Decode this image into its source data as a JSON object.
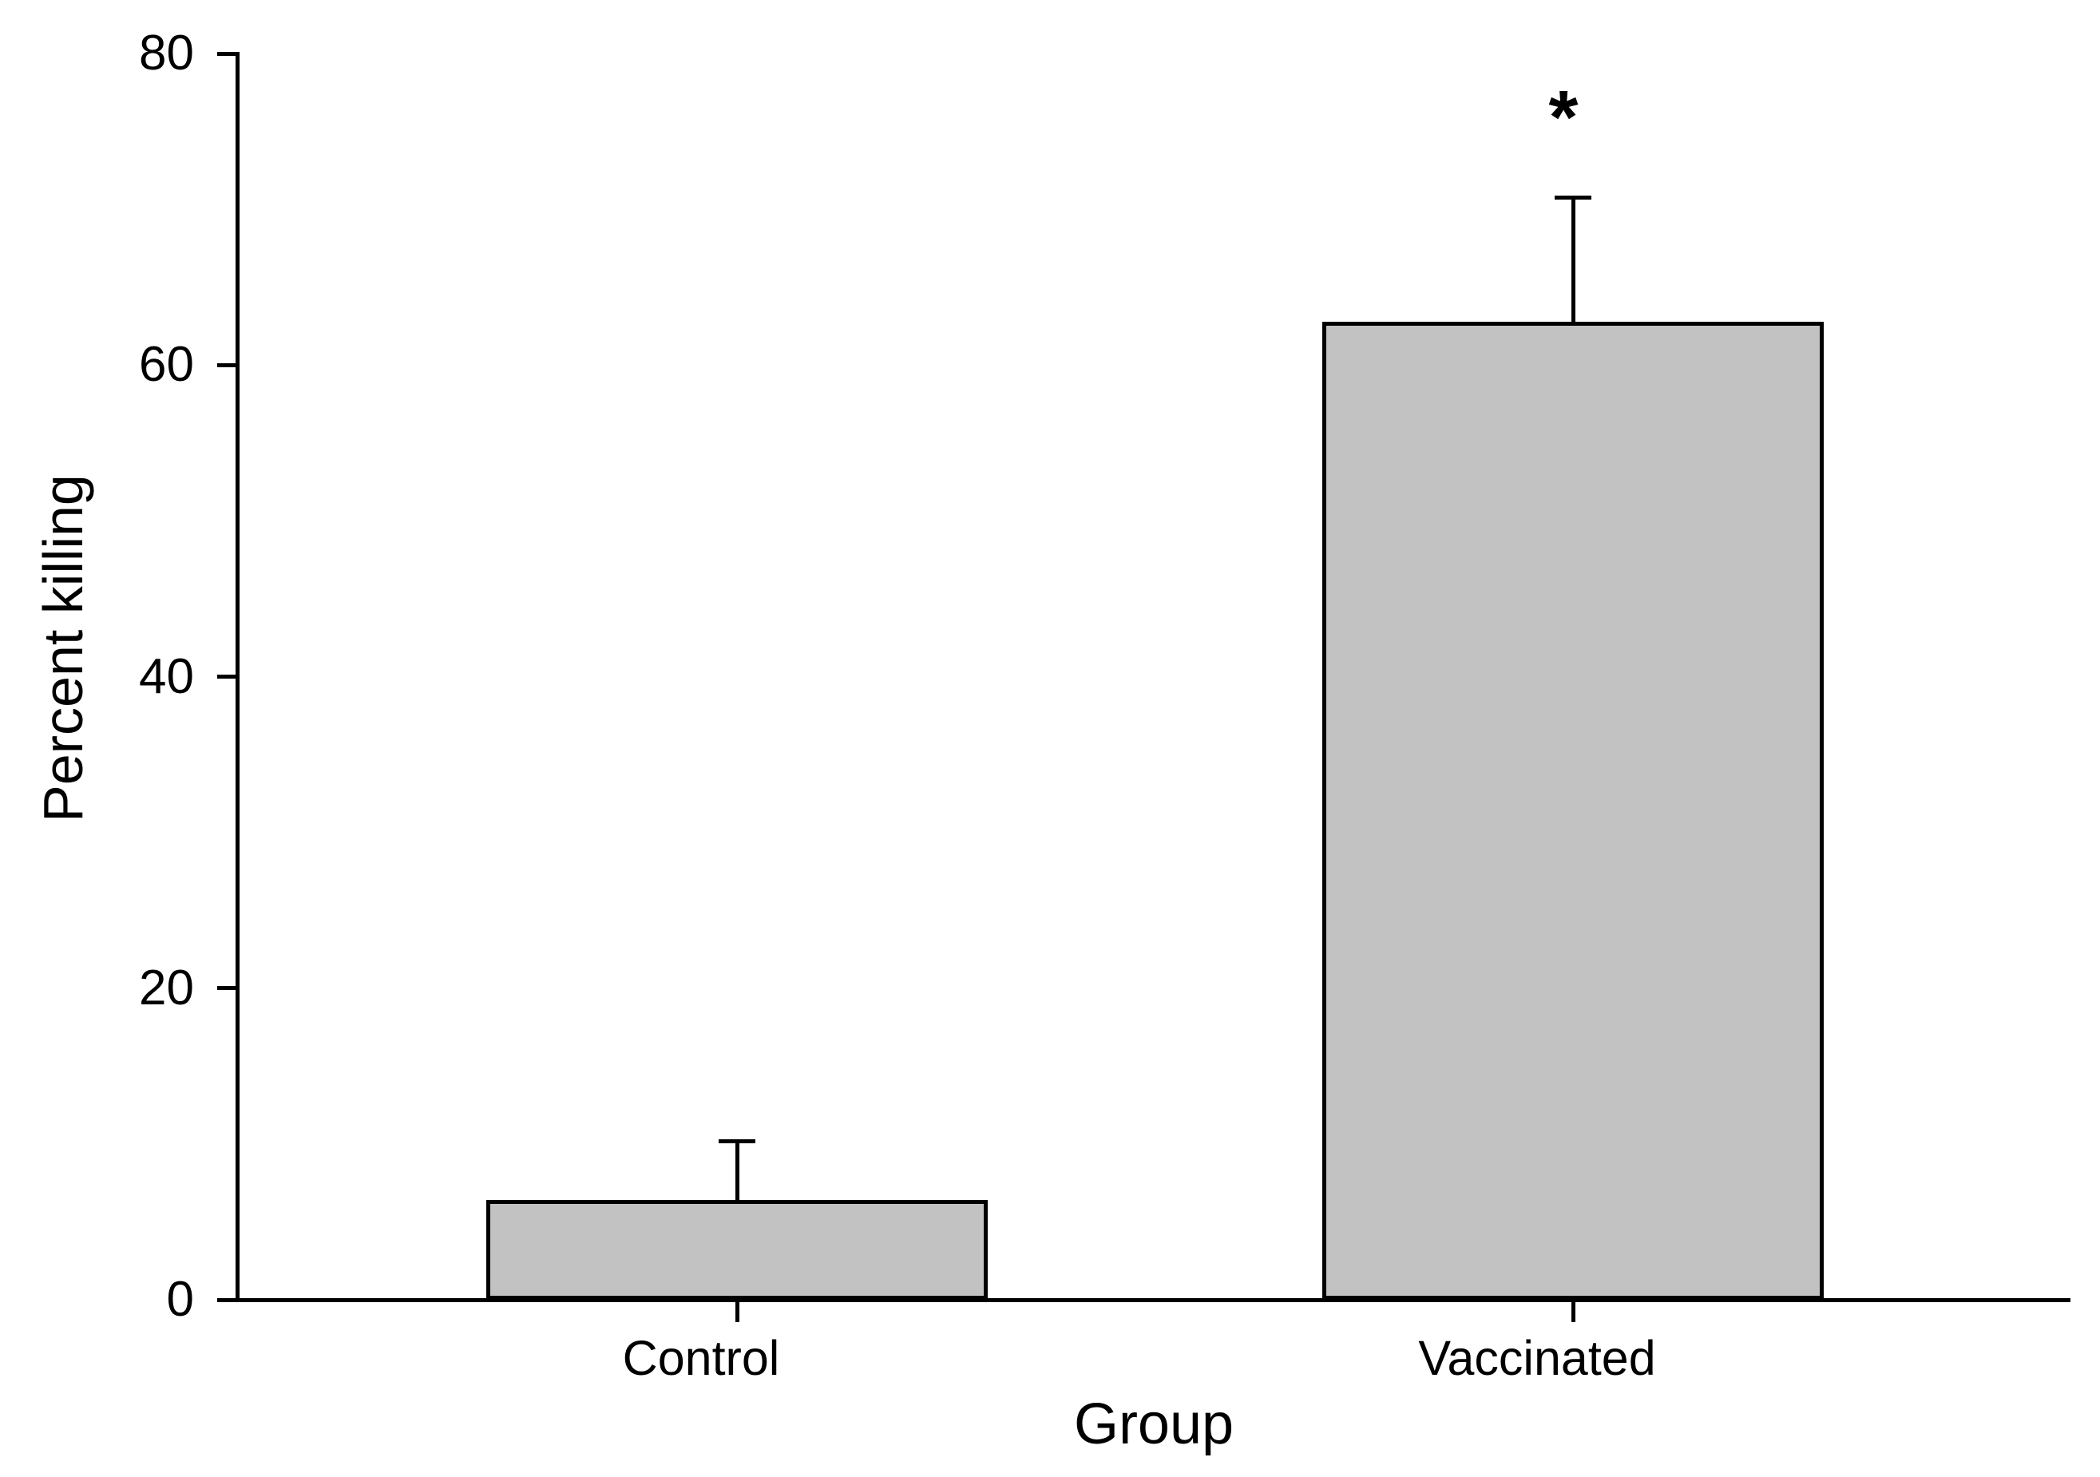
{
  "chart_data": {
    "type": "bar",
    "title": "",
    "xlabel": "Group",
    "ylabel": "Percent killing",
    "categories": [
      "Control",
      "Vaccinated"
    ],
    "values": [
      6.4,
      62.8
    ],
    "error_plus": [
      3.9,
      8.1
    ],
    "ylim": [
      0,
      80
    ],
    "yticks": [
      0,
      20,
      40,
      60,
      80
    ],
    "ytick_labels": [
      "0",
      "20",
      "40",
      "60",
      "80"
    ],
    "grid": false,
    "legend": null,
    "bar_fill_color": "#c2c2c2",
    "bar_border_color": "#000000",
    "axis_color": "#000000",
    "significance": {
      "category": "Vaccinated",
      "marker": "*"
    }
  }
}
